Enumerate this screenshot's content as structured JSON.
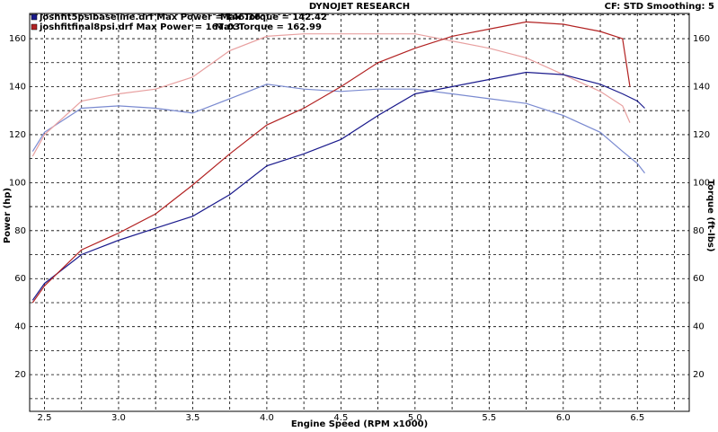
{
  "chart_data": {
    "type": "line",
    "title": "DYNOJET RESEARCH",
    "subtitle": "CF: STD  Smoothing: 5",
    "xlabel": "Engine Speed (RPM x1000)",
    "ylabel": "Power (hp)",
    "y2label": "Torque (ft-lbs)",
    "legend": [
      {
        "label": "joshfit5psibaseline.drf Max Power = 146.16",
        "torque": "Max Torque = 142.42",
        "color": "#1a1a8c"
      },
      {
        "label": "joshfitfinal8psi.drf Max Power = 167.03",
        "torque": "Max Torque = 162.99",
        "color": "#b22222"
      }
    ],
    "xlim": [
      2.4,
      6.85
    ],
    "xticks": [
      2.5,
      {
        "value": 3,
        "label": "3.0"
      },
      3.5,
      {
        "value": 4,
        "label": "4.0"
      },
      4.5,
      {
        "value": 5,
        "label": "5.0"
      },
      5.5,
      {
        "value": 6,
        "label": "6.0"
      },
      6.5
    ],
    "x_minor_ticks": [
      2.75,
      3.25,
      3.75,
      4.25,
      4.75,
      5.25,
      5.75,
      6.25,
      6.75
    ],
    "ylim": [
      4.7,
      170.5
    ],
    "yticks": [
      20,
      40,
      60,
      80,
      100,
      120,
      140,
      160
    ],
    "y_minor_ticks": [
      10,
      30,
      50,
      70,
      90,
      110,
      130,
      150,
      170
    ],
    "y2lim": [
      4.7,
      170.5
    ],
    "y2ticks": [
      20,
      40,
      60,
      80,
      100,
      120,
      140,
      160
    ],
    "grid": true,
    "series": [
      {
        "color": "#7a8ad0",
        "axis": "y2",
        "x": [
          2.42,
          2.5,
          2.75,
          3.0,
          3.25,
          3.5,
          3.75,
          4.0,
          4.25,
          4.5,
          4.75,
          5.0,
          5.25,
          5.5,
          5.75,
          6.0,
          6.25,
          6.4,
          6.5,
          6.55
        ],
        "values": [
          113,
          121,
          131,
          132,
          131,
          129,
          135,
          141,
          139,
          138,
          139,
          139,
          137,
          135,
          133,
          128,
          121,
          113,
          108,
          104
        ]
      },
      {
        "color": "#e8a0a0",
        "axis": "y2",
        "x": [
          2.42,
          2.5,
          2.75,
          3.0,
          3.25,
          3.5,
          3.75,
          4.0,
          4.25,
          4.5,
          4.75,
          5.0,
          5.25,
          5.5,
          5.75,
          6.0,
          6.25,
          6.4,
          6.45
        ],
        "values": [
          111,
          120,
          134,
          137,
          139,
          144,
          155,
          161,
          162,
          162,
          162,
          162,
          159,
          156,
          152,
          145,
          138,
          132,
          125
        ]
      },
      {
        "color": "#1a1a8c",
        "x": [
          2.42,
          2.5,
          2.75,
          3.0,
          3.25,
          3.5,
          3.75,
          4.0,
          4.25,
          4.5,
          4.75,
          5.0,
          5.25,
          5.5,
          5.75,
          6.0,
          6.25,
          6.4,
          6.5,
          6.55
        ],
        "values": [
          51,
          58,
          70,
          76,
          81,
          86,
          95,
          107,
          112,
          118,
          128,
          137,
          140,
          143,
          146,
          145,
          141,
          137,
          134,
          131
        ]
      },
      {
        "color": "#b22222",
        "x": [
          2.42,
          2.5,
          2.75,
          3.0,
          3.25,
          3.5,
          3.75,
          4.0,
          4.25,
          4.5,
          4.75,
          5.0,
          5.25,
          5.5,
          5.75,
          6.0,
          6.25,
          6.4,
          6.45
        ],
        "values": [
          50,
          57,
          72,
          79,
          87,
          99,
          112,
          124,
          131,
          140,
          150,
          156,
          161,
          164,
          167,
          166,
          163,
          160,
          140
        ]
      }
    ]
  }
}
